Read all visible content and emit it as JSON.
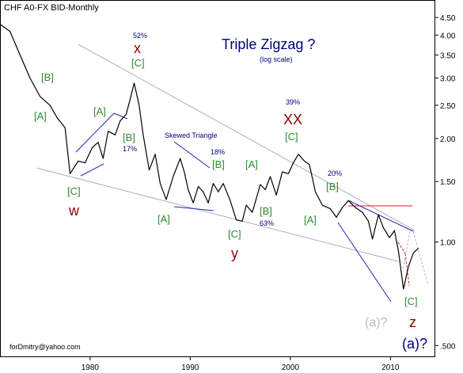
{
  "chart_data": {
    "type": "line",
    "title": "CHF A0-FX BID-Monthly",
    "annotation_title": "Triple Zigzag ?",
    "annotation_subtitle": "(log scale)",
    "footer": "forDmitry@yahoo.com",
    "y_scale": "log",
    "ylim": [
      0.48,
      4.9
    ],
    "xlim": [
      1971.0,
      2014.4
    ],
    "y_ticks": [
      4.5,
      4.0,
      3.5,
      3.0,
      2.5,
      2.0,
      1.5,
      1.0,
      0.5
    ],
    "y_tick_labels": [
      "4.50",
      "4.00",
      "3.50",
      "3.00",
      "2.50",
      "2.00",
      "1.50",
      "1.00",
      ".500"
    ],
    "x_ticks": [
      1980,
      1990,
      2000,
      2010
    ],
    "x_tick_labels": [
      "1980",
      "1990",
      "2000",
      "2010"
    ],
    "grid": false,
    "colors": {
      "price": "#000000",
      "wave_green": "#2e8b2e",
      "wave_red": "#8b0000",
      "channel": "#b0b0b0",
      "trendline": "#2222bb",
      "resistance": "#dd2222",
      "title_blue": "#000080",
      "forecast_gray": "#bbbbbb",
      "forecast_red": "#cc2222"
    },
    "series": [
      {
        "x": [
          1971.0,
          1972.0,
          1973.0,
          1974.0,
          1975.0,
          1976.0,
          1976.7,
          1977.5,
          1978.0,
          1978.8,
          1979.5,
          1980.2,
          1980.8,
          1981.3,
          1981.8,
          1982.5,
          1983.0,
          1983.6,
          1984.0,
          1984.4,
          1984.9,
          1985.3,
          1985.9,
          1986.5,
          1987.0,
          1987.6,
          1988.3,
          1989.0,
          1989.4,
          1989.8,
          1990.3,
          1990.8,
          1991.3,
          1991.8,
          1992.3,
          1992.8,
          1993.3,
          1994.0,
          1994.6,
          1995.2,
          1995.6,
          1996.2,
          1997.0,
          1997.5,
          1998.0,
          1998.6,
          1999.2,
          1999.8,
          2000.3,
          2000.8,
          2001.4,
          2001.9,
          2002.5,
          2003.2,
          2004.0,
          2004.6,
          2005.2,
          2005.8,
          2006.5,
          2007.2,
          2007.8,
          2008.2,
          2008.8,
          2009.3,
          2009.9,
          2010.4,
          2010.8,
          2011.3,
          2011.8,
          2012.3,
          2012.8
        ],
        "values": [
          4.3,
          4.1,
          3.5,
          3.0,
          2.65,
          2.5,
          2.3,
          2.15,
          1.58,
          1.72,
          1.7,
          1.88,
          1.95,
          1.75,
          2.1,
          2.05,
          2.25,
          2.35,
          2.6,
          2.9,
          2.5,
          2.05,
          1.62,
          1.8,
          1.48,
          1.33,
          1.55,
          1.75,
          1.6,
          1.42,
          1.3,
          1.45,
          1.4,
          1.3,
          1.48,
          1.4,
          1.48,
          1.32,
          1.16,
          1.15,
          1.28,
          1.22,
          1.47,
          1.42,
          1.55,
          1.37,
          1.6,
          1.58,
          1.7,
          1.8,
          1.72,
          1.68,
          1.4,
          1.28,
          1.25,
          1.18,
          1.26,
          1.32,
          1.26,
          1.22,
          1.15,
          1.02,
          1.2,
          1.1,
          1.03,
          1.08,
          0.94,
          0.73,
          0.85,
          0.93,
          0.96
        ]
      }
    ]
  },
  "labels": {
    "wave_c1": "[C]",
    "wave_b1": "[B]",
    "wave_a1": "[A]",
    "w": "w",
    "x": "x",
    "pct_x": "52%",
    "wave_c2": "[C]",
    "wave_a2": "[A]",
    "wave_b2": "[B]",
    "pct_b2": "17%",
    "skewed": "Skewed Triangle",
    "pct_st": "18%",
    "wave_b3": "[B]",
    "wave_a3": "[A]",
    "wave_c3": "[C]",
    "y": "y",
    "wave_a4": "[A]",
    "wave_b4": "[B]",
    "pct_63": "63%",
    "wave_c4": "[C]",
    "pct_xx": "39%",
    "xx": "XX",
    "wave_a5": "[A]",
    "wave_b5": "[B]",
    "pct_20": "20%",
    "wave_c5": "[C]",
    "z": "z",
    "a_gray": "(a)?",
    "a_blue": "(a)?"
  }
}
